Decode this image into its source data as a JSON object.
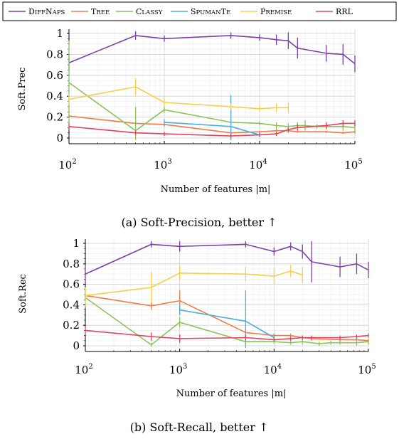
{
  "legend": [
    {
      "name": "DiffNaps",
      "color": "#7b3fa8"
    },
    {
      "name": "Tree",
      "color": "#f07c45"
    },
    {
      "name": "Classy",
      "color": "#8cc35a"
    },
    {
      "name": "SpumanTe",
      "color": "#49aee0"
    },
    {
      "name": "Premise",
      "color": "#f8cf4a"
    },
    {
      "name": "RRL",
      "color": "#e0435e"
    }
  ],
  "chart_data": [
    {
      "type": "line",
      "xscale": "log",
      "xlim": [
        100,
        100000
      ],
      "ylim": [
        0,
        1
      ],
      "xticks": [
        "10",
        "10",
        "10",
        "10"
      ],
      "xtick_exponents": [
        "2",
        "3",
        "4",
        "5"
      ],
      "yticks": [
        "0",
        "0.2",
        "0.4",
        "0.6",
        "0.8",
        "1"
      ],
      "xlabel": "Number of features |m|",
      "ylabel": "Soft.Prec",
      "caption": "(a) Soft-Precision, better ↑",
      "grid": true,
      "series": [
        {
          "name": "DiffNaps",
          "color": "#7b3fa8",
          "points": [
            [
              100,
              0.72,
              0.07
            ],
            [
              500,
              0.98,
              0.04
            ],
            [
              1000,
              0.95,
              0.03
            ],
            [
              5000,
              0.98,
              0.03
            ],
            [
              10000,
              0.96,
              0.03
            ],
            [
              15000,
              0.94,
              0.05
            ],
            [
              20000,
              0.93,
              0.08
            ],
            [
              25000,
              0.86,
              0.1
            ],
            [
              50000,
              0.81,
              0.08
            ],
            [
              75000,
              0.8,
              0.1
            ],
            [
              100000,
              0.71,
              0.08
            ]
          ]
        },
        {
          "name": "Tree",
          "color": "#f07c45",
          "points": [
            [
              100,
              0.21,
              0.02
            ],
            [
              500,
              0.14,
              0.02
            ],
            [
              1000,
              0.13,
              0.02
            ],
            [
              5000,
              0.05,
              0.02
            ],
            [
              10000,
              0.06,
              0.01
            ],
            [
              15000,
              0.07,
              0.02
            ],
            [
              20000,
              0.07,
              0.02
            ],
            [
              25000,
              0.06,
              0.01
            ],
            [
              50000,
              0.06,
              0.01
            ],
            [
              75000,
              0.05,
              0.01
            ],
            [
              100000,
              0.06,
              0.02
            ]
          ]
        },
        {
          "name": "Classy",
          "color": "#8cc35a",
          "points": [
            [
              100,
              0.53,
              0.4
            ],
            [
              500,
              0.07,
              0.23
            ],
            [
              1000,
              0.27,
              0.03
            ],
            [
              5000,
              0.15,
              0.02
            ],
            [
              10000,
              0.14,
              0.02
            ],
            [
              15000,
              0.12,
              0.03
            ],
            [
              20000,
              0.11,
              0.03
            ],
            [
              25000,
              0.12,
              0.03
            ],
            [
              30000,
              0.12,
              0.05
            ],
            [
              40000,
              0.11,
              0.02
            ],
            [
              50000,
              0.11,
              0.03
            ],
            [
              75000,
              0.11,
              0.04
            ],
            [
              100000,
              0.1,
              0.04
            ]
          ]
        },
        {
          "name": "SpumanTe",
          "color": "#49aee0",
          "points": [
            [
              1000,
              0.15,
              0.03
            ],
            [
              5000,
              0.11,
              0.3
            ],
            [
              10000,
              0.03,
              0.02
            ]
          ]
        },
        {
          "name": "Premise",
          "color": "#f8cf4a",
          "points": [
            [
              100,
              0.37,
              0.05
            ],
            [
              500,
              0.49,
              0.08
            ],
            [
              1000,
              0.34,
              0.04
            ],
            [
              5000,
              0.3,
              0.03
            ],
            [
              10000,
              0.28,
              0.03
            ],
            [
              15000,
              0.29,
              0.04
            ],
            [
              20000,
              0.29,
              0.05
            ]
          ]
        },
        {
          "name": "RRL",
          "color": "#e0435e",
          "points": [
            [
              100,
              0.11,
              0.03
            ],
            [
              500,
              0.05,
              0.02
            ],
            [
              1000,
              0.04,
              0.02
            ],
            [
              5000,
              0.02,
              0.02
            ],
            [
              10000,
              0.03,
              0.02
            ],
            [
              15000,
              0.04,
              0.02
            ],
            [
              20000,
              0.08,
              0.02
            ],
            [
              25000,
              0.1,
              0.03
            ],
            [
              50000,
              0.12,
              0.03
            ],
            [
              75000,
              0.14,
              0.03
            ],
            [
              100000,
              0.14,
              0.03
            ]
          ]
        }
      ]
    },
    {
      "type": "line",
      "xscale": "log",
      "xlim": [
        100,
        100000
      ],
      "ylim": [
        0,
        1
      ],
      "xticks": [
        "10",
        "10",
        "10",
        "10"
      ],
      "xtick_exponents": [
        "2",
        "3",
        "4",
        "5"
      ],
      "yticks": [
        "0",
        "0.2",
        "0.4",
        "0.6",
        "0.8",
        "1"
      ],
      "xlabel": "Number of features |m|",
      "ylabel": "Soft.Rec",
      "caption": "(b) Soft-Recall, better ↑",
      "grid": true,
      "series": [
        {
          "name": "DiffNaps",
          "color": "#7b3fa8",
          "points": [
            [
              100,
              0.7,
              0.09
            ],
            [
              500,
              0.99,
              0.03
            ],
            [
              1000,
              0.97,
              0.05
            ],
            [
              5000,
              0.99,
              0.03
            ],
            [
              10000,
              0.92,
              0.04
            ],
            [
              15000,
              0.97,
              0.04
            ],
            [
              20000,
              0.92,
              0.07
            ],
            [
              25000,
              0.82,
              0.2
            ],
            [
              50000,
              0.77,
              0.1
            ],
            [
              75000,
              0.8,
              0.1
            ],
            [
              100000,
              0.74,
              0.08
            ]
          ]
        },
        {
          "name": "Tree",
          "color": "#f07c45",
          "points": [
            [
              100,
              0.49,
              0.05
            ],
            [
              500,
              0.39,
              0.04
            ],
            [
              1000,
              0.44,
              0.1
            ],
            [
              5000,
              0.13,
              0.04
            ],
            [
              10000,
              0.1,
              0.02
            ],
            [
              15000,
              0.1,
              0.02
            ],
            [
              20000,
              0.08,
              0.02
            ],
            [
              25000,
              0.07,
              0.02
            ],
            [
              50000,
              0.06,
              0.02
            ],
            [
              75000,
              0.06,
              0.02
            ],
            [
              100000,
              0.05,
              0.02
            ]
          ]
        },
        {
          "name": "Classy",
          "color": "#8cc35a",
          "points": [
            [
              100,
              0.47,
              0.1
            ],
            [
              500,
              0.01,
              0.02
            ],
            [
              1000,
              0.23,
              0.05
            ],
            [
              5000,
              0.04,
              0.02
            ],
            [
              10000,
              0.04,
              0.02
            ],
            [
              15000,
              0.03,
              0.02
            ],
            [
              20000,
              0.04,
              0.03
            ],
            [
              30000,
              0.02,
              0.02
            ],
            [
              40000,
              0.03,
              0.02
            ],
            [
              50000,
              0.03,
              0.02
            ],
            [
              75000,
              0.03,
              0.03
            ],
            [
              100000,
              0.04,
              0.03
            ]
          ]
        },
        {
          "name": "SpumanTe",
          "color": "#49aee0",
          "points": [
            [
              1000,
              0.35,
              0.05
            ],
            [
              5000,
              0.24,
              0.3
            ],
            [
              10000,
              0.08,
              0.03
            ]
          ]
        },
        {
          "name": "Premise",
          "color": "#f8cf4a",
          "points": [
            [
              100,
              0.49,
              0.08
            ],
            [
              500,
              0.57,
              0.15
            ],
            [
              1000,
              0.71,
              0.07
            ],
            [
              5000,
              0.7,
              0.07
            ],
            [
              10000,
              0.68,
              0.08
            ],
            [
              15000,
              0.73,
              0.06
            ],
            [
              20000,
              0.69,
              0.08
            ]
          ]
        },
        {
          "name": "RRL",
          "color": "#e0435e",
          "points": [
            [
              100,
              0.15,
              0.04
            ],
            [
              500,
              0.09,
              0.04
            ],
            [
              1000,
              0.07,
              0.04
            ],
            [
              5000,
              0.08,
              0.03
            ],
            [
              10000,
              0.06,
              0.02
            ],
            [
              15000,
              0.07,
              0.02
            ],
            [
              20000,
              0.08,
              0.02
            ],
            [
              25000,
              0.08,
              0.02
            ],
            [
              50000,
              0.08,
              0.02
            ],
            [
              75000,
              0.09,
              0.02
            ],
            [
              100000,
              0.1,
              0.02
            ]
          ]
        }
      ]
    }
  ]
}
